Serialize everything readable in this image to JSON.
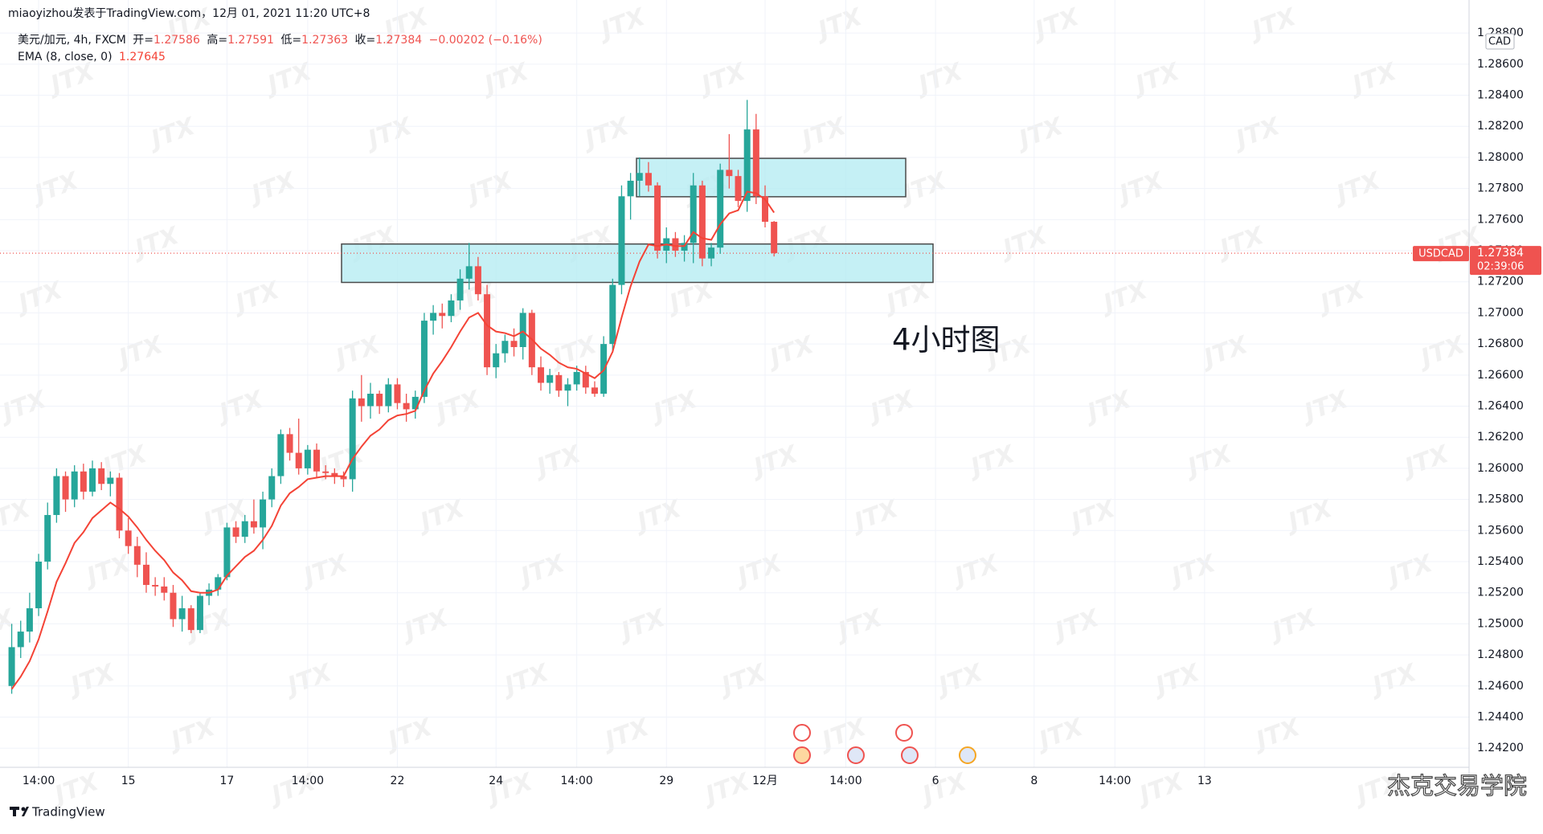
{
  "header": {
    "publisher": "miaoyizhou发表于TradingView.com，12月 01, 2021 11:20 UTC+8",
    "symbol_text": "美元/加元, 4h, FXCM",
    "open_label": "开=",
    "high_label": "高=",
    "low_label": "低=",
    "close_label": "收=",
    "change": "−0.00202 (−0.16%)",
    "ema_label": "EMA (8, close, 0)"
  },
  "footer": {
    "brand": "TradingView",
    "watermark": "杰克交易学院",
    "background_mark": "JTX"
  },
  "chart_data": {
    "type": "candlestick",
    "annotation": "4小时图",
    "currency": "CAD",
    "symbol": "USDCAD",
    "last_price": 1.27384,
    "countdown": "02:39:06",
    "up_color": "#26a69a",
    "down_color": "#ef5350",
    "ema_color": "#f44336",
    "zone_color": "#b2ebf2",
    "grid": true,
    "categories": [
      null,
      null,
      null,
      "14:00",
      null,
      null,
      null,
      null,
      null,
      null,
      null,
      null,
      null,
      "15",
      null,
      null,
      null,
      null,
      null,
      null,
      null,
      null,
      null,
      null,
      "17",
      null,
      null,
      null,
      null,
      null,
      null,
      null,
      null,
      "14:00",
      null,
      null,
      null,
      null,
      null,
      null,
      null,
      null,
      null,
      "22",
      null,
      null,
      null,
      null,
      null,
      null,
      null,
      null,
      null,
      null,
      "24",
      null,
      null,
      null,
      null,
      null,
      null,
      null,
      null,
      "14:00",
      null,
      null,
      null,
      null,
      null,
      null,
      null,
      null,
      null,
      "29",
      null,
      null,
      null,
      null,
      null,
      null,
      null,
      null,
      null,
      null,
      "12月",
      null,
      null,
      null,
      null,
      null,
      null,
      null,
      null,
      "14:00",
      null,
      null,
      null,
      null,
      null,
      null,
      null,
      null,
      null,
      "6",
      null,
      null,
      null,
      null,
      null,
      null,
      null,
      null,
      null,
      null,
      "8",
      null,
      null,
      null,
      null,
      null,
      null,
      null,
      null,
      "14:00",
      null,
      null,
      null,
      null,
      null,
      null,
      null,
      null,
      null,
      "13"
    ],
    "open": [
      1.246,
      1.2485,
      1.2495,
      1.251,
      1.254,
      1.257,
      1.2595,
      1.258,
      1.2598,
      1.2585,
      1.26,
      1.259,
      1.2594,
      1.256,
      1.255,
      1.2538,
      1.2525,
      1.2524,
      1.252,
      1.2503,
      1.251,
      1.2496,
      1.2518,
      1.2522,
      1.253,
      1.2562,
      1.2556,
      1.2566,
      1.2562,
      1.258,
      1.2595,
      1.2622,
      1.261,
      1.26,
      1.2612,
      1.2598,
      1.2597,
      1.2595,
      1.2593,
      1.2645,
      1.264,
      1.2648,
      1.264,
      1.2654,
      1.2642,
      1.2638,
      1.2646,
      1.2695,
      1.27,
      1.2698,
      1.2708,
      1.2722,
      1.273,
      1.2712,
      1.2665,
      1.2674,
      1.2682,
      1.2678,
      1.27,
      1.2665,
      1.2655,
      1.266,
      1.265,
      1.2654,
      1.2662,
      1.2652,
      1.2648,
      1.268,
      1.2718,
      1.2775,
      1.2785,
      1.279,
      1.2782,
      1.274,
      1.2748,
      1.274,
      1.2745,
      1.2782,
      1.2735,
      1.2742,
      1.2792,
      1.2788,
      1.2772,
      1.2818,
      1.2775,
      1.27586,
      null,
      null,
      null,
      null,
      null,
      null,
      null,
      null,
      null,
      null,
      null,
      null,
      null,
      null,
      null,
      null,
      null,
      null,
      null,
      null,
      null,
      null,
      null,
      null,
      null,
      null,
      null,
      null,
      null,
      null,
      null,
      null,
      null,
      null,
      null,
      null,
      null,
      null,
      null,
      null,
      null,
      null,
      null,
      null,
      null,
      null,
      null,
      null
    ],
    "high": [
      1.25,
      1.2502,
      1.252,
      1.2545,
      1.2578,
      1.26,
      1.2598,
      1.2602,
      1.2603,
      1.2605,
      1.2604,
      1.2598,
      1.2597,
      1.2568,
      1.2556,
      1.2546,
      1.253,
      1.253,
      1.2525,
      1.2518,
      1.2512,
      1.252,
      1.2526,
      1.2532,
      1.2565,
      1.2566,
      1.257,
      1.258,
      1.2585,
      1.26,
      1.2625,
      1.2626,
      1.2632,
      1.2615,
      1.2616,
      1.2602,
      1.26,
      1.2598,
      1.265,
      1.266,
      1.2655,
      1.265,
      1.2658,
      1.2658,
      1.2648,
      1.265,
      1.27,
      1.2705,
      1.2706,
      1.2712,
      1.2728,
      1.2745,
      1.2736,
      1.2718,
      1.268,
      1.2686,
      1.269,
      1.2703,
      1.2702,
      1.2672,
      1.2664,
      1.2662,
      1.2658,
      1.2666,
      1.2666,
      1.2656,
      1.2685,
      1.2722,
      1.2782,
      1.279,
      1.28,
      1.2797,
      1.2784,
      1.2755,
      1.2752,
      1.275,
      1.279,
      1.2785,
      1.2745,
      1.2796,
      1.2815,
      1.2792,
      1.2837,
      1.2828,
      1.2782,
      1.27591,
      null,
      null,
      null,
      null,
      null,
      null,
      null,
      null,
      null,
      null,
      null,
      null,
      null,
      null,
      null,
      null,
      null,
      null,
      null,
      null,
      null,
      null,
      null,
      null,
      null,
      null,
      null,
      null,
      null,
      null,
      null,
      null,
      null,
      null,
      null,
      null,
      null,
      null,
      null,
      null,
      null,
      null,
      null,
      null,
      null,
      null,
      null,
      null
    ],
    "low": [
      1.2455,
      1.2478,
      1.2488,
      1.2505,
      1.2535,
      1.2565,
      1.2572,
      1.2575,
      1.258,
      1.2582,
      1.2586,
      1.2582,
      1.2555,
      1.2545,
      1.253,
      1.252,
      1.2518,
      1.2515,
      1.2498,
      1.2495,
      1.2494,
      1.2494,
      1.2512,
      1.2518,
      1.2528,
      1.2552,
      1.2552,
      1.2558,
      1.2548,
      1.2575,
      1.259,
      1.2605,
      1.2596,
      1.2596,
      1.2594,
      1.2593,
      1.259,
      1.2588,
      1.2585,
      1.263,
      1.2632,
      1.2635,
      1.2636,
      1.2638,
      1.263,
      1.2632,
      1.2642,
      1.2686,
      1.269,
      1.2694,
      1.2702,
      1.2715,
      1.2708,
      1.266,
      1.2658,
      1.2668,
      1.2672,
      1.267,
      1.266,
      1.265,
      1.2648,
      1.2646,
      1.264,
      1.265,
      1.2648,
      1.2646,
      1.2646,
      1.2675,
      1.2712,
      1.276,
      1.2775,
      1.2778,
      1.2735,
      1.2732,
      1.2736,
      1.2733,
      1.2732,
      1.273,
      1.273,
      1.2738,
      1.278,
      1.2768,
      1.2765,
      1.277,
      1.2755,
      1.27363,
      null,
      null,
      null,
      null,
      null,
      null,
      null,
      null,
      null,
      null,
      null,
      null,
      null,
      null,
      null,
      null,
      null,
      null,
      null,
      null,
      null,
      null,
      null,
      null,
      null,
      null,
      null,
      null,
      null,
      null,
      null,
      null,
      null,
      null,
      null,
      null,
      null,
      null,
      null,
      null,
      null,
      null,
      null,
      null,
      null,
      null,
      null,
      null
    ],
    "close": [
      1.2485,
      1.2495,
      1.251,
      1.254,
      1.257,
      1.2595,
      1.258,
      1.2598,
      1.2585,
      1.26,
      1.259,
      1.2594,
      1.256,
      1.255,
      1.2538,
      1.2525,
      1.2524,
      1.252,
      1.2503,
      1.251,
      1.2496,
      1.2518,
      1.2522,
      1.253,
      1.2562,
      1.2556,
      1.2566,
      1.2562,
      1.258,
      1.2595,
      1.2622,
      1.261,
      1.26,
      1.2612,
      1.2598,
      1.2597,
      1.2595,
      1.2593,
      1.2645,
      1.264,
      1.2648,
      1.264,
      1.2654,
      1.2642,
      1.2638,
      1.2646,
      1.2695,
      1.27,
      1.2698,
      1.2708,
      1.2722,
      1.273,
      1.2712,
      1.2665,
      1.2674,
      1.2682,
      1.2678,
      1.27,
      1.2665,
      1.2655,
      1.266,
      1.265,
      1.2654,
      1.2662,
      1.2652,
      1.2648,
      1.268,
      1.2718,
      1.2775,
      1.2785,
      1.279,
      1.2782,
      1.274,
      1.2748,
      1.274,
      1.2745,
      1.2782,
      1.2735,
      1.2742,
      1.2792,
      1.2788,
      1.2772,
      1.2818,
      1.2775,
      1.27586,
      1.27384,
      null,
      null,
      null,
      null,
      null,
      null,
      null,
      null,
      null,
      null,
      null,
      null,
      null,
      null,
      null,
      null,
      null,
      null,
      null,
      null,
      null,
      null,
      null,
      null,
      null,
      null,
      null,
      null,
      null,
      null,
      null,
      null,
      null,
      null,
      null,
      null,
      null,
      null,
      null,
      null,
      null,
      null,
      null,
      null,
      null,
      null,
      null,
      null
    ],
    "ema": [
      1.2458,
      1.2466,
      1.2476,
      1.249,
      1.2508,
      1.2527,
      1.2539,
      1.2552,
      1.2559,
      1.2568,
      1.2573,
      1.2578,
      1.2574,
      1.2569,
      1.2562,
      1.2554,
      1.2547,
      1.2541,
      1.2533,
      1.2528,
      1.2521,
      1.252,
      1.252,
      1.2522,
      1.2531,
      1.2537,
      1.2543,
      1.2547,
      1.2554,
      1.2563,
      1.2576,
      1.2584,
      1.2588,
      1.2593,
      1.2594,
      1.2595,
      1.2595,
      1.2595,
      1.2606,
      1.2614,
      1.2621,
      1.2625,
      1.2631,
      1.2634,
      1.2635,
      1.2637,
      1.265,
      1.2661,
      1.2669,
      1.2678,
      1.2688,
      1.2697,
      1.27,
      1.2692,
      1.2688,
      1.2687,
      1.2685,
      1.2688,
      1.2683,
      1.2677,
      1.2673,
      1.2668,
      1.2665,
      1.2664,
      1.2661,
      1.2658,
      1.2663,
      1.2675,
      1.2697,
      1.2717,
      1.2733,
      1.2744,
      1.2743,
      1.2744,
      1.2743,
      1.2743,
      1.2752,
      1.2748,
      1.2747,
      1.2757,
      1.2764,
      1.2766,
      1.2778,
      1.2777,
      1.2773,
      1.27645,
      null,
      null,
      null,
      null,
      null,
      null,
      null,
      null,
      null,
      null,
      null,
      null,
      null,
      null,
      null,
      null,
      null,
      null,
      null,
      null,
      null,
      null,
      null,
      null,
      null,
      null,
      null,
      null,
      null,
      null,
      null,
      null,
      null,
      null,
      null,
      null,
      null,
      null,
      null,
      null,
      null,
      null,
      null,
      null,
      null,
      null,
      null,
      null
    ],
    "zones": [
      {
        "low": 1.27196,
        "high": 1.27443
      },
      {
        "low": 1.27747,
        "high": 1.27994
      }
    ],
    "ylim": [
      1.24077,
      1.28873
    ],
    "yticks": [
      {
        "value": 1.242,
        "label": "1.24200"
      },
      {
        "value": 1.244,
        "label": "1.24400"
      },
      {
        "value": 1.246,
        "label": "1.24600"
      },
      {
        "value": 1.248,
        "label": "1.24800"
      },
      {
        "value": 1.25,
        "label": "1.25000"
      },
      {
        "value": 1.252,
        "label": "1.25200"
      },
      {
        "value": 1.254,
        "label": "1.25400"
      },
      {
        "value": 1.256,
        "label": "1.25600"
      },
      {
        "value": 1.258,
        "label": "1.25800"
      },
      {
        "value": 1.26,
        "label": "1.26000"
      },
      {
        "value": 1.262,
        "label": "1.26200"
      },
      {
        "value": 1.264,
        "label": "1.26400"
      },
      {
        "value": 1.266,
        "label": "1.26600"
      },
      {
        "value": 1.268,
        "label": "1.26800"
      },
      {
        "value": 1.27,
        "label": "1.27000"
      },
      {
        "value": 1.272,
        "label": "1.27200"
      },
      {
        "value": 1.274,
        "label": "1.27400"
      },
      {
        "value": 1.276,
        "label": "1.27600"
      },
      {
        "value": 1.278,
        "label": "1.27800"
      },
      {
        "value": 1.28,
        "label": "1.28000"
      },
      {
        "value": 1.282,
        "label": "1.28200"
      },
      {
        "value": 1.284,
        "label": "1.28400"
      },
      {
        "value": 1.286,
        "label": "1.28600"
      },
      {
        "value": 1.288,
        "label": "1.28800"
      }
    ]
  }
}
